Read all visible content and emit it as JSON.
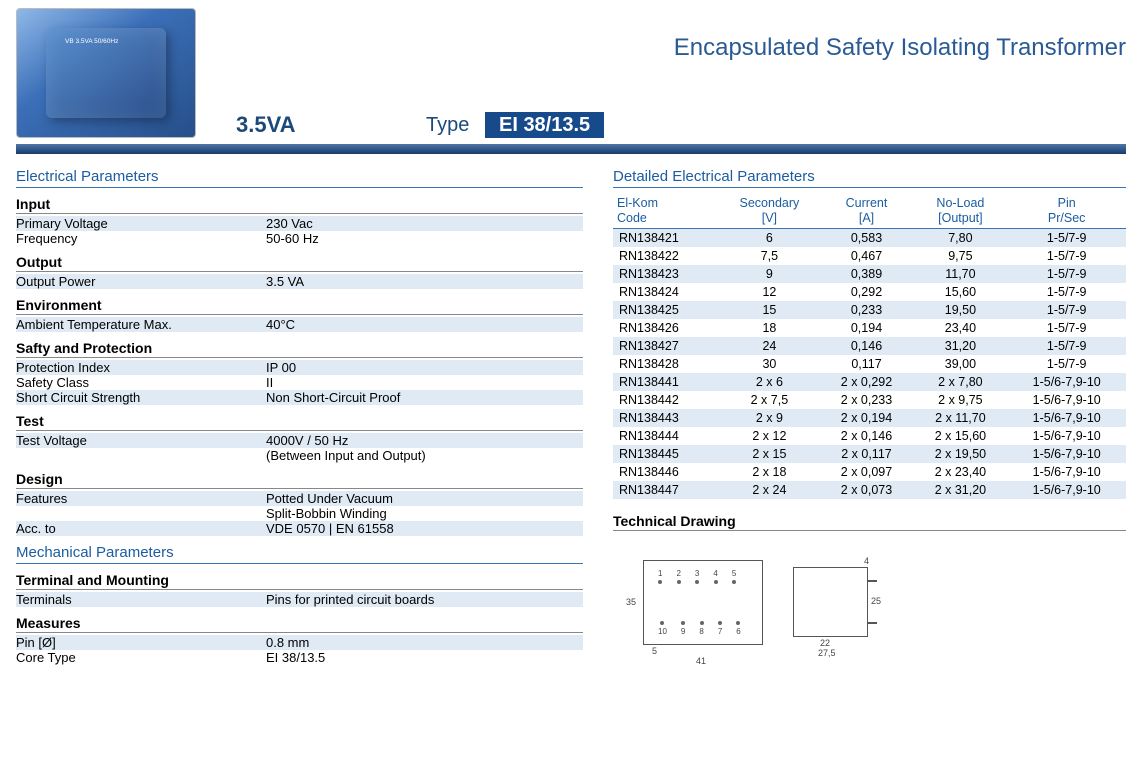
{
  "header": {
    "title": "Encapsulated Safety Isolating Transformer",
    "va": "3.5VA",
    "type_label": "Type",
    "type_value": "EI 38/13.5"
  },
  "sections": {
    "electrical": "Electrical Parameters",
    "mechanical": "Mechanical Parameters",
    "detailed": "Detailed Electrical Parameters",
    "technical_drawing": "Technical Drawing"
  },
  "groups": {
    "input": "Input",
    "output": "Output",
    "environment": "Environment",
    "safety": "Safty and Protection",
    "test": "Test",
    "design": "Design",
    "terminal": "Terminal and Mounting",
    "measures": "Measures"
  },
  "params": {
    "primary_voltage_k": "Primary Voltage",
    "primary_voltage_v": "230 Vac",
    "frequency_k": "Frequency",
    "frequency_v": "50-60 Hz",
    "output_power_k": "Output Power",
    "output_power_v": "3.5 VA",
    "ambient_k": "Ambient Temperature Max.",
    "ambient_v": "40°C",
    "protection_k": "Protection Index",
    "protection_v": "IP 00",
    "safety_class_k": "Safety Class",
    "safety_class_v": "II",
    "short_k": "Short Circuit Strength",
    "short_v": "Non Short-Circuit Proof",
    "test_voltage_k": "Test Voltage",
    "test_voltage_v": "4000V / 50 Hz",
    "test_voltage_v2": "(Between Input and Output)",
    "features_k": "Features",
    "features_v": "Potted Under Vacuum",
    "features_v2": "Split-Bobbin Winding",
    "acc_k": "Acc. to",
    "acc_v": "VDE 0570 | EN 61558",
    "terminals_k": "Terminals",
    "terminals_v": "Pins for printed circuit boards",
    "pin_k": "Pin [Ø]",
    "pin_v": "0.8 mm",
    "core_k": "Core Type",
    "core_v": "EI 38/13.5"
  },
  "det_headers": {
    "code": "El-Kom\nCode",
    "sec": "Secondary\n[V]",
    "cur": "Current\n[A]",
    "noload": "No-Load\n[Output]",
    "pin": "Pin\nPr/Sec"
  },
  "det_rows": [
    {
      "c": "RN138421",
      "s": "6",
      "a": "0,583",
      "n": "7,80",
      "p": "1-5/7-9"
    },
    {
      "c": "RN138422",
      "s": "7,5",
      "a": "0,467",
      "n": "9,75",
      "p": "1-5/7-9"
    },
    {
      "c": "RN138423",
      "s": "9",
      "a": "0,389",
      "n": "11,70",
      "p": "1-5/7-9"
    },
    {
      "c": "RN138424",
      "s": "12",
      "a": "0,292",
      "n": "15,60",
      "p": "1-5/7-9"
    },
    {
      "c": "RN138425",
      "s": "15",
      "a": "0,233",
      "n": "19,50",
      "p": "1-5/7-9"
    },
    {
      "c": "RN138426",
      "s": "18",
      "a": "0,194",
      "n": "23,40",
      "p": "1-5/7-9"
    },
    {
      "c": "RN138427",
      "s": "24",
      "a": "0,146",
      "n": "31,20",
      "p": "1-5/7-9"
    },
    {
      "c": "RN138428",
      "s": "30",
      "a": "0,117",
      "n": "39,00",
      "p": "1-5/7-9"
    },
    {
      "c": "RN138441",
      "s": "2 x 6",
      "a": "2 x 0,292",
      "n": "2 x 7,80",
      "p": "1-5/6-7,9-10"
    },
    {
      "c": "RN138442",
      "s": "2 x 7,5",
      "a": "2 x 0,233",
      "n": "2 x 9,75",
      "p": "1-5/6-7,9-10"
    },
    {
      "c": "RN138443",
      "s": "2 x 9",
      "a": "2 x 0,194",
      "n": "2 x 11,70",
      "p": "1-5/6-7,9-10"
    },
    {
      "c": "RN138444",
      "s": "2 x 12",
      "a": "2 x 0,146",
      "n": "2 x 15,60",
      "p": "1-5/6-7,9-10"
    },
    {
      "c": "RN138445",
      "s": "2 x 15",
      "a": "2 x 0,117",
      "n": "2 x 19,50",
      "p": "1-5/6-7,9-10"
    },
    {
      "c": "RN138446",
      "s": "2 x 18",
      "a": "2 x 0,097",
      "n": "2 x 23,40",
      "p": "1-5/6-7,9-10"
    },
    {
      "c": "RN138447",
      "s": "2 x 24",
      "a": "2 x 0,073",
      "n": "2 x 31,20",
      "p": "1-5/6-7,9-10"
    }
  ],
  "drawing": {
    "w1": "41",
    "h1": "35",
    "off1": "5",
    "w2": "27,5",
    "h2": "25",
    "w22": "22",
    "off2": "4",
    "pin_labels_top": [
      "1",
      "2",
      "3",
      "4",
      "5"
    ],
    "pin_labels_bot": [
      "10",
      "9",
      "8",
      "7",
      "6"
    ]
  },
  "colors": {
    "accent": "#1b5da0",
    "band": "#164a8a",
    "stripe": "#dfeaf4"
  }
}
